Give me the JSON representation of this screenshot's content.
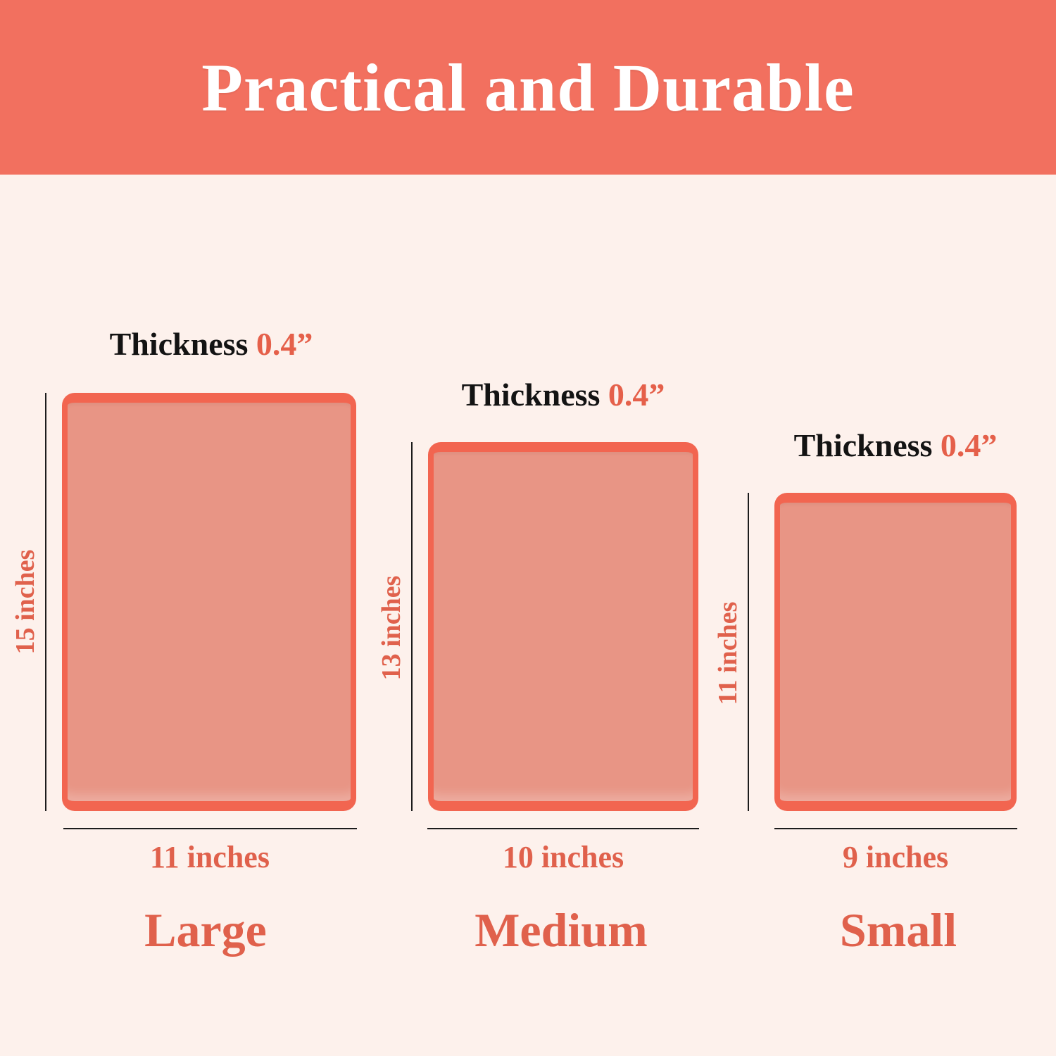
{
  "header": {
    "title": "Practical and Durable"
  },
  "colors": {
    "banner": "#f2705f",
    "background": "#fdf1ec",
    "board_fill": "#e89585",
    "board_rim": "#f26550",
    "accent_text": "#e0614c",
    "dark_text": "#131313",
    "title_text": "#ffffff"
  },
  "boards": [
    {
      "size_label": "Large",
      "thickness_label": "Thickness",
      "thickness_value": "0.4”",
      "height_label": "15 inches",
      "width_label": "11 inches"
    },
    {
      "size_label": "Medium",
      "thickness_label": "Thickness",
      "thickness_value": "0.4”",
      "height_label": "13 inches",
      "width_label": "10 inches"
    },
    {
      "size_label": "Small",
      "thickness_label": "Thickness",
      "thickness_value": "0.4”",
      "height_label": "11 inches",
      "width_label": "9 inches"
    }
  ]
}
